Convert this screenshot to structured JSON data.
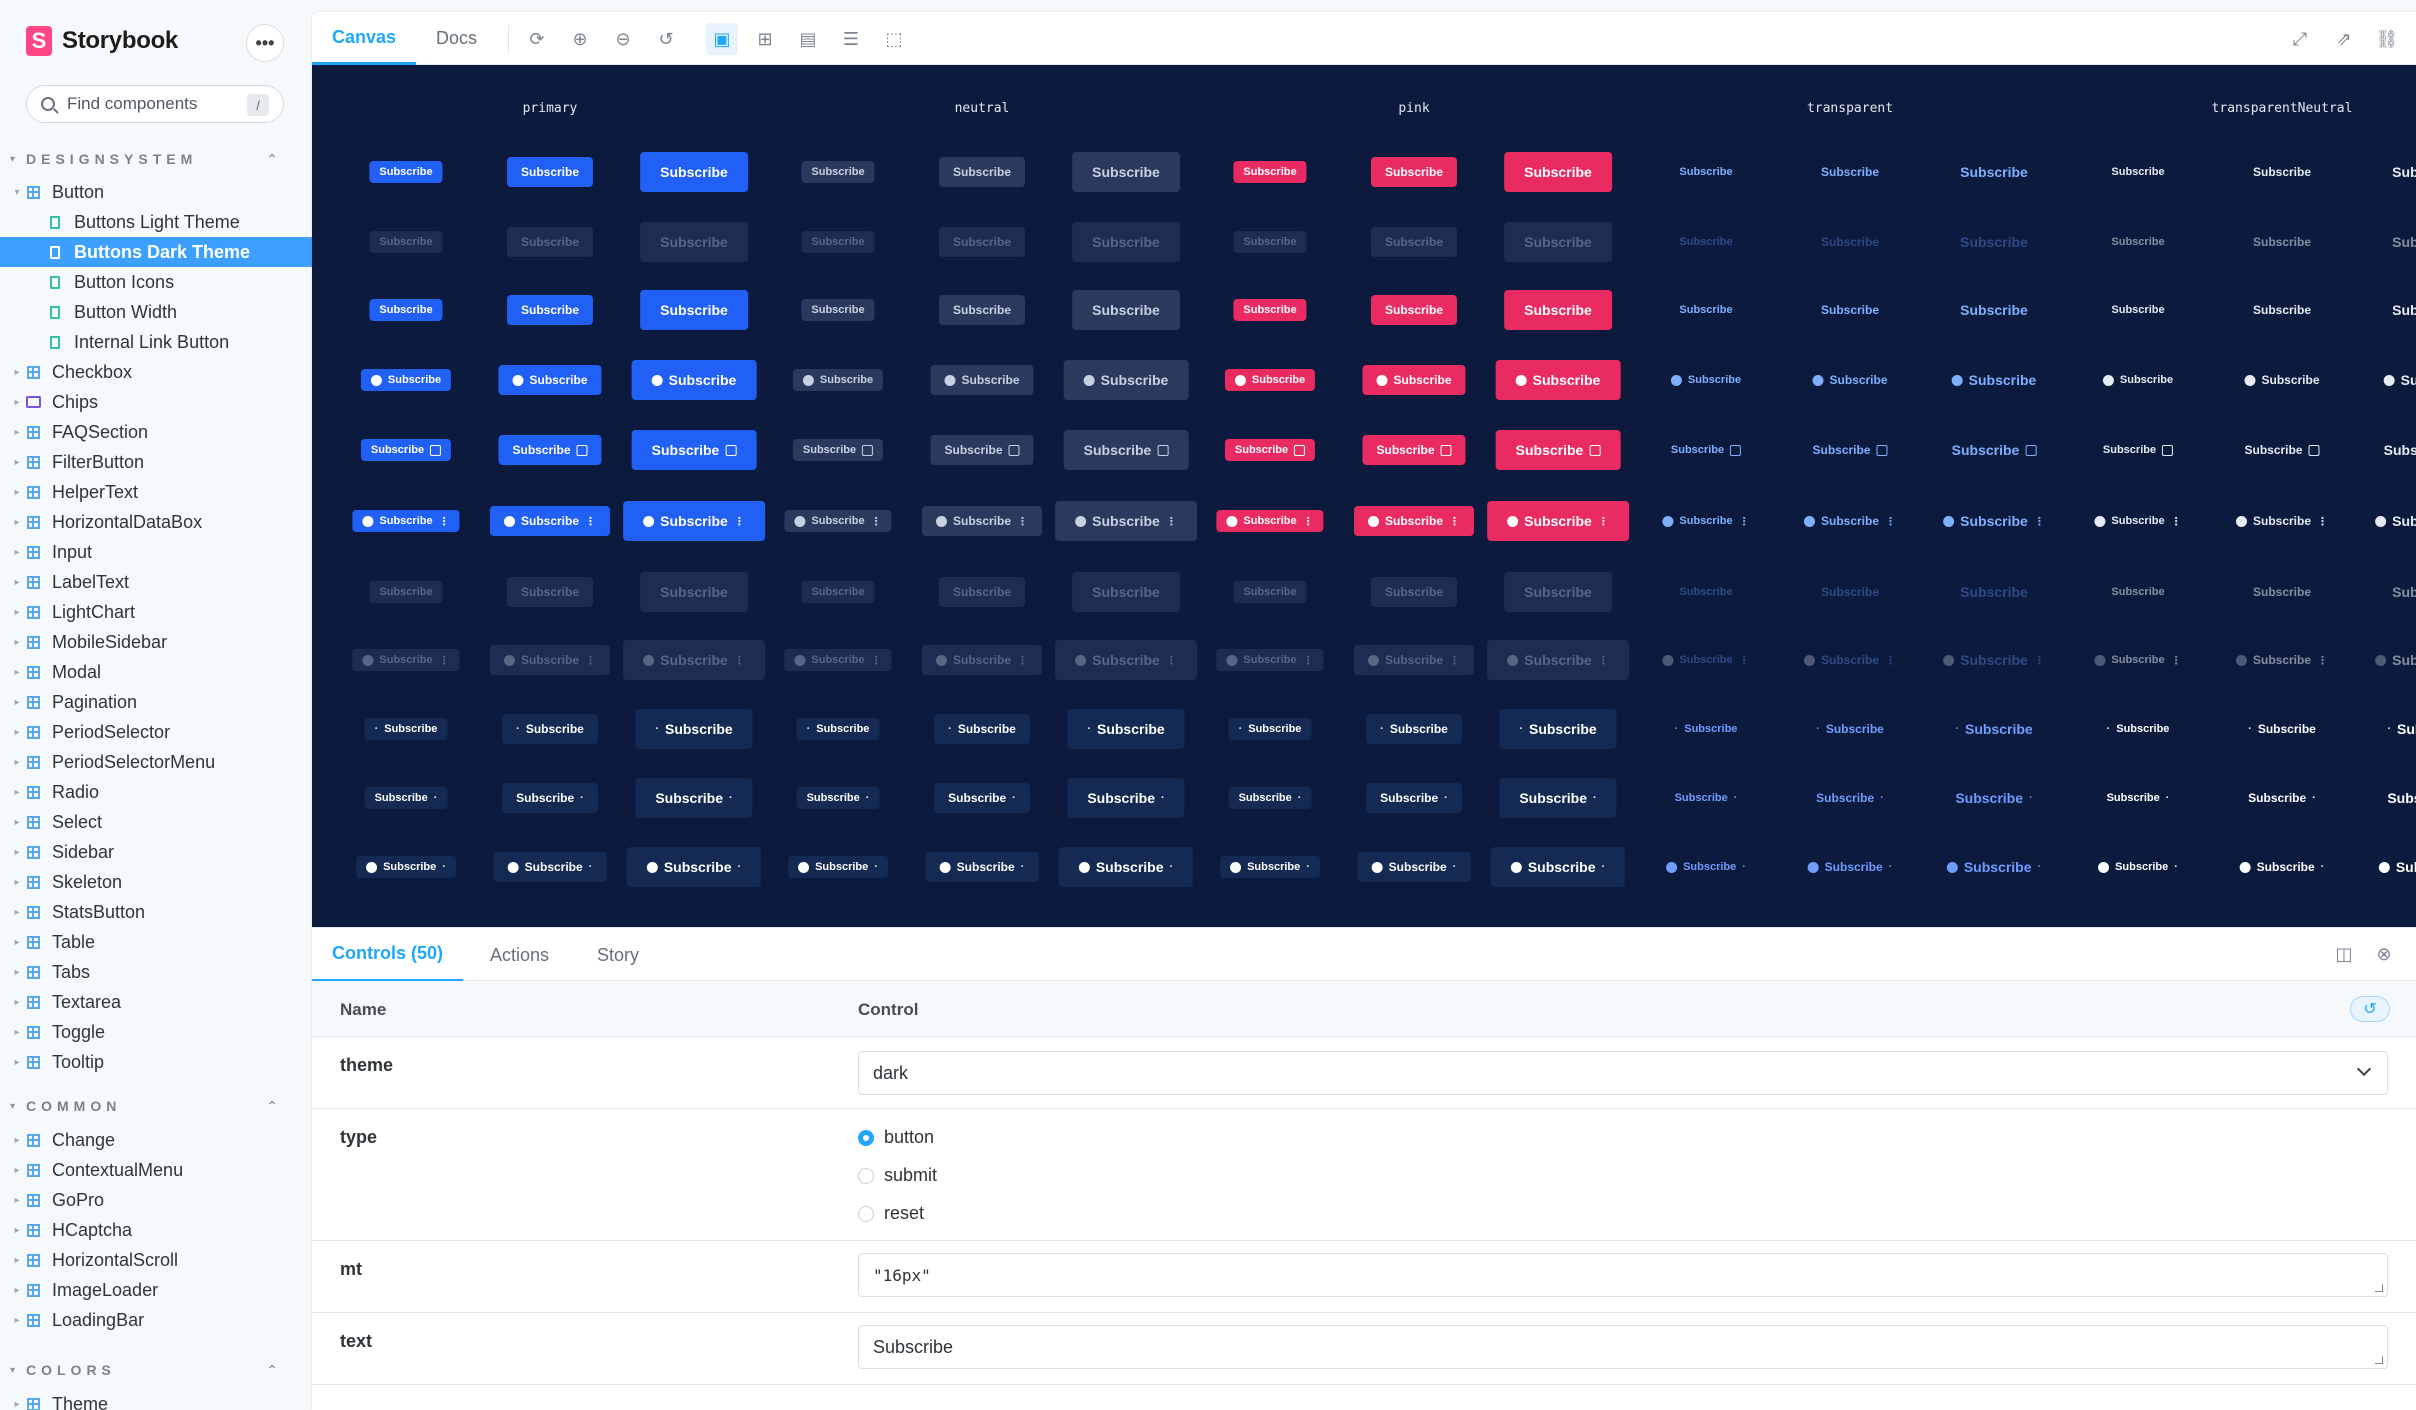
{
  "sidebar": {
    "brand": "Storybook",
    "more_label": "•••",
    "search_placeholder": "Find components",
    "search_shortcut": "/",
    "groups": [
      {
        "label": "DESIGNSYSTEM"
      },
      {
        "label": "COMMON"
      },
      {
        "label": "COLORS"
      }
    ],
    "button_node": "Button",
    "button_stories": [
      "Buttons Light Theme",
      "Buttons Dark Theme",
      "Button Icons",
      "Button Width",
      "Internal Link Button"
    ],
    "designsystem_items": [
      "Checkbox",
      "Chips",
      "FAQSection",
      "FilterButton",
      "HelperText",
      "HorizontalDataBox",
      "Input",
      "LabelText",
      "LightChart",
      "MobileSidebar",
      "Modal",
      "Pagination",
      "PeriodSelector",
      "PeriodSelectorMenu",
      "Radio",
      "Select",
      "Sidebar",
      "Skeleton",
      "StatsButton",
      "Table",
      "Tabs",
      "Textarea",
      "Toggle",
      "Tooltip"
    ],
    "common_items": [
      "Change",
      "ContextualMenu",
      "GoPro",
      "HCaptcha",
      "HorizontalScroll",
      "ImageLoader",
      "LoadingBar"
    ],
    "colors_items": [
      "Theme"
    ]
  },
  "toolbar": {
    "tabs": [
      "Canvas",
      "Docs"
    ]
  },
  "canvas": {
    "column_headers": [
      "primary",
      "neutral",
      "pink",
      "transparent",
      "transparentNeutral"
    ],
    "button_text": "Subscribe"
  },
  "panel": {
    "tabs": [
      "Controls (50)",
      "Actions",
      "Story"
    ],
    "col_name": "Name",
    "col_control": "Control",
    "reset_icon": "↺",
    "controls": {
      "theme": {
        "name": "theme",
        "value": "dark"
      },
      "type": {
        "name": "type",
        "options": [
          "button",
          "submit",
          "reset"
        ],
        "selected": "button"
      },
      "mt": {
        "name": "mt",
        "value": "\"16px\""
      },
      "text": {
        "name": "text",
        "value": "Subscribe"
      }
    }
  },
  "colors": {
    "primary": "#2160f5",
    "neutral": "#2b3a5c",
    "pink": "#ea2b62",
    "accent": "#1ea7fd",
    "canvas": "#0c1b3d"
  }
}
